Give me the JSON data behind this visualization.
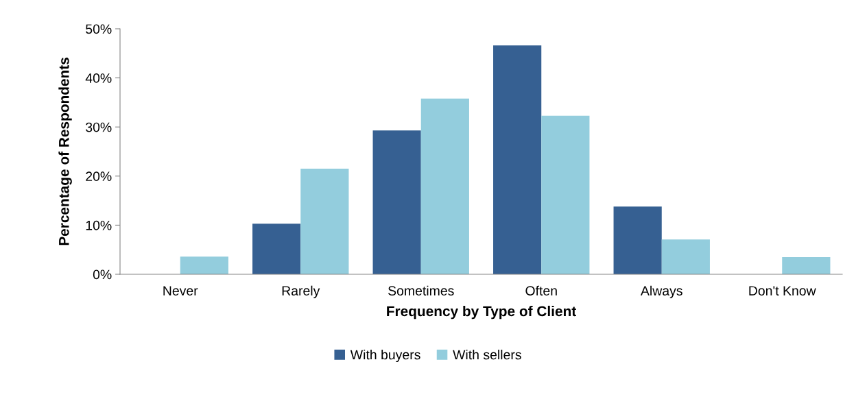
{
  "chart_data": {
    "type": "bar",
    "xlabel": "Frequency by Type of Client",
    "ylabel": "Percentage of Respondents",
    "categories": [
      "Never",
      "Rarely",
      "Sometimes",
      "Often",
      "Always",
      "Don't Know"
    ],
    "series": [
      {
        "name": "With buyers",
        "color": "#366092",
        "values": [
          0,
          10.3,
          29.3,
          46.6,
          13.8,
          0
        ]
      },
      {
        "name": "With sellers",
        "color": "#93cddd",
        "values": [
          3.6,
          21.5,
          35.8,
          32.3,
          7.1,
          3.5
        ]
      }
    ],
    "ylim": [
      0,
      50
    ],
    "yticks": [
      {
        "value": 0,
        "label": "0%"
      },
      {
        "value": 10,
        "label": "10%"
      },
      {
        "value": 20,
        "label": "20%"
      },
      {
        "value": 30,
        "label": "30%"
      },
      {
        "value": 40,
        "label": "40%"
      },
      {
        "value": 50,
        "label": "50%"
      }
    ],
    "grid": false,
    "legend": "bottom"
  }
}
